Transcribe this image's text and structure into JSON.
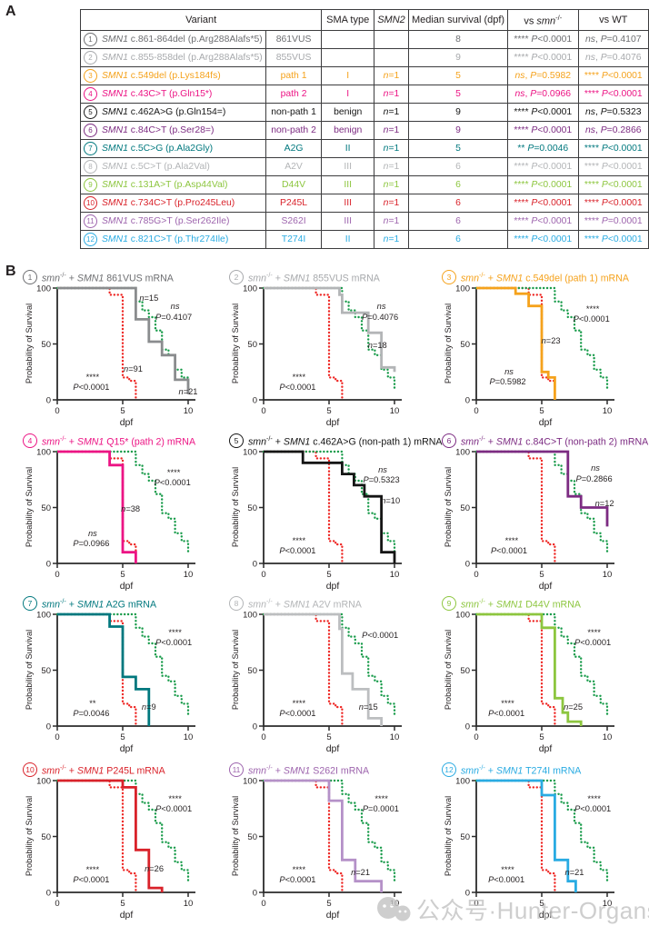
{
  "panel_a": {
    "label": "A"
  },
  "panel_b": {
    "label": "B"
  },
  "table": {
    "headers": {
      "variant": "Variant",
      "sma_type": "SMA type",
      "smn2": "SMN2",
      "median": "Median survival (dpf)",
      "vs_smn": "vs smn-/-",
      "vs_wt": "vs WT"
    },
    "rows": [
      {
        "num": "1",
        "color": "#6d6e71",
        "variant": "SMN1 c.861-864del (p.Arg288Alafs*5)",
        "short": "861VUS",
        "sma": "",
        "smn2": "",
        "median": "8",
        "vs_smn": "**** P<0.0001",
        "vs_wt": "ns, P=0.4107"
      },
      {
        "num": "2",
        "color": "#a7a9ac",
        "variant": "SMN1 c.855-858del (p.Arg288Alafs*5)",
        "short": "855VUS",
        "sma": "",
        "smn2": "",
        "median": "9",
        "vs_smn": "**** P<0.0001",
        "vs_wt": "ns, P=0.4076"
      },
      {
        "num": "3",
        "color": "#f5a21c",
        "variant": "SMN1 c.549del (p.Lys184fs)",
        "short": "path 1",
        "sma": "I",
        "smn2": "n=1",
        "median": "5",
        "vs_smn": "ns, P=0.5982",
        "vs_wt": "**** P<0.0001"
      },
      {
        "num": "4",
        "color": "#ec1484",
        "variant": "SMN1 c.43C>T (p.Gln15*)",
        "short": "path 2",
        "sma": "I",
        "smn2": "n=1",
        "median": "5",
        "vs_smn": "ns, P=0.0966",
        "vs_wt": "**** P<0.0001"
      },
      {
        "num": "5",
        "color": "#151515",
        "variant": "SMN1 c.462A>G (p.Gln154=)",
        "short": "non-path 1",
        "sma": "benign",
        "smn2": "n=1",
        "median": "9",
        "vs_smn": "**** P<0.0001",
        "vs_wt": "ns, P=0.5323"
      },
      {
        "num": "6",
        "color": "#7c2b82",
        "variant": "SMN1 c.84C>T (p.Ser28=)",
        "short": "non-path 2",
        "sma": "benign",
        "smn2": "n=1",
        "median": "9",
        "vs_smn": "**** P<0.0001",
        "vs_wt": "ns, P=0.2866"
      },
      {
        "num": "7",
        "color": "#00787e",
        "variant": "SMN1 c.5C>G (p.Ala2Gly)",
        "short": "A2G",
        "sma": "II",
        "smn2": "n=1",
        "median": "5",
        "vs_smn": "** P=0.0046",
        "vs_wt": "**** P<0.0001"
      },
      {
        "num": "8",
        "color": "#b3b5b7",
        "variant": "SMN1 c.5C>T (p.Ala2Val)",
        "short": "A2V",
        "sma": "III",
        "smn2": "n=1",
        "median": "6",
        "vs_smn": "**** P<0.0001",
        "vs_wt": "**** P<0.0001"
      },
      {
        "num": "9",
        "color": "#8dc63f",
        "variant": "SMN1 c.131A>T (p.Asp44Val)",
        "short": "D44V",
        "sma": "III",
        "smn2": "n=1",
        "median": "6",
        "vs_smn": "**** P<0.0001",
        "vs_wt": "**** P<0.0001"
      },
      {
        "num": "10",
        "color": "#d9222a",
        "variant": "SMN1 c.734C>T (p.Pro245Leu)",
        "short": "P245L",
        "sma": "III",
        "smn2": "n=1",
        "median": "6",
        "vs_smn": "**** P<0.0001",
        "vs_wt": "**** P<0.0001"
      },
      {
        "num": "11",
        "color": "#9d64ad",
        "variant": "SMN1 c.785G>T (p.Ser262Ile)",
        "short": "S262I",
        "sma": "III",
        "smn2": "n=1",
        "median": "6",
        "vs_smn": "**** P<0.0001",
        "vs_wt": "**** P=0.0001"
      },
      {
        "num": "12",
        "color": "#29abe2",
        "variant": "SMN1 c.821C>T (p.Thr274Ile)",
        "short": "T274I",
        "sma": "II",
        "smn2": "n=1",
        "median": "6",
        "vs_smn": "**** P<0.0001",
        "vs_wt": "**** P<0.0001"
      }
    ]
  },
  "chart_data": {
    "type": "kaplan-meier-step",
    "ylabel": "Probability of Survival",
    "xlabel": "dpf",
    "yticks": [
      "0",
      "50",
      "100"
    ],
    "xticks": [
      "0",
      "5",
      "10"
    ],
    "xlim": [
      0,
      10.5
    ],
    "ylim": [
      0,
      100
    ],
    "controls": {
      "smn_mutant": {
        "name": "smn-/-",
        "color": "#ee2724",
        "style": "dotted",
        "steps": [
          [
            0,
            100
          ],
          [
            4,
            94
          ],
          [
            5,
            20
          ],
          [
            5.5,
            17
          ],
          [
            6,
            0
          ]
        ]
      },
      "wt": {
        "name": "WT",
        "color": "#189b4a",
        "style": "dotted",
        "steps": [
          [
            0,
            100
          ],
          [
            6,
            88
          ],
          [
            6.5,
            80
          ],
          [
            7,
            74
          ],
          [
            7.5,
            62
          ],
          [
            8,
            45
          ],
          [
            8.5,
            40
          ],
          [
            9,
            27
          ],
          [
            9.5,
            20
          ],
          [
            10,
            8
          ]
        ]
      }
    },
    "plots": [
      {
        "num": "1",
        "color": "#6d6e71",
        "line_color": "#8a8c8e",
        "title": "smn-/- + SMN1 861VUS mRNA",
        "steps": [
          [
            0,
            100
          ],
          [
            6,
            72
          ],
          [
            7,
            52
          ],
          [
            8,
            40
          ],
          [
            9,
            18
          ],
          [
            10,
            5
          ]
        ],
        "annotations": [
          {
            "t": "n=15",
            "x": 7.0,
            "y": 91
          },
          {
            "t": "ns",
            "x": 9.0,
            "y": 84
          },
          {
            "t": "P=0.4107",
            "x": 8.9,
            "y": 74
          },
          {
            "t": "n=91",
            "x": 5.8,
            "y": 28
          },
          {
            "t": "****",
            "x": 2.7,
            "y": 20
          },
          {
            "t": "P<0.0001",
            "x": 2.6,
            "y": 11
          },
          {
            "t": "n=21",
            "x": 10.0,
            "y": 7
          }
        ]
      },
      {
        "num": "2",
        "color": "#a7a9ac",
        "line_color": "#b3b5b7",
        "title": "smn-/- + SMN1 855VUS mRNA",
        "steps": [
          [
            0,
            100
          ],
          [
            5.8,
            94
          ],
          [
            6,
            78
          ],
          [
            8,
            60
          ],
          [
            9,
            29
          ],
          [
            10,
            25
          ]
        ],
        "annotations": [
          {
            "t": "ns",
            "x": 9.0,
            "y": 84
          },
          {
            "t": "P=0.4076",
            "x": 8.9,
            "y": 74
          },
          {
            "t": "n=18",
            "x": 8.7,
            "y": 49
          },
          {
            "t": "****",
            "x": 2.7,
            "y": 20
          },
          {
            "t": "P<0.0001",
            "x": 2.6,
            "y": 11
          }
        ]
      },
      {
        "num": "3",
        "color": "#f5a21c",
        "title": "smn-/- + SMN1 c.549del (path 1) mRNA",
        "steps": [
          [
            0,
            100
          ],
          [
            3,
            95
          ],
          [
            4,
            84
          ],
          [
            5,
            25
          ],
          [
            5.5,
            20
          ],
          [
            6,
            0
          ]
        ],
        "annotations": [
          {
            "t": "****",
            "x": 8.9,
            "y": 81
          },
          {
            "t": "P<0.0001",
            "x": 8.8,
            "y": 72
          },
          {
            "t": "n=23",
            "x": 5.7,
            "y": 53
          },
          {
            "t": "ns",
            "x": 2.5,
            "y": 25
          },
          {
            "t": "P=0.5982",
            "x": 2.4,
            "y": 16
          }
        ]
      },
      {
        "num": "4",
        "color": "#ec1484",
        "title": "smn-/- + SMN1 Q15* (path 2) mRNA",
        "steps": [
          [
            0,
            100
          ],
          [
            4,
            88
          ],
          [
            5,
            10
          ],
          [
            6,
            0
          ]
        ],
        "annotations": [
          {
            "t": "****",
            "x": 8.9,
            "y": 81
          },
          {
            "t": "P<0.0001",
            "x": 8.8,
            "y": 72
          },
          {
            "t": "n=38",
            "x": 5.6,
            "y": 49
          },
          {
            "t": "ns",
            "x": 2.7,
            "y": 27
          },
          {
            "t": "P=0.0966",
            "x": 2.6,
            "y": 18
          }
        ]
      },
      {
        "num": "5",
        "color": "#151515",
        "title": "smn-/- + SMN1 c.462A>G (non-path 1) mRNA",
        "steps": [
          [
            0,
            100
          ],
          [
            3,
            90
          ],
          [
            6,
            80
          ],
          [
            6.9,
            70
          ],
          [
            7.7,
            60
          ],
          [
            9,
            10
          ],
          [
            10,
            0
          ]
        ],
        "annotations": [
          {
            "t": "ns",
            "x": 9.1,
            "y": 84
          },
          {
            "t": "P=0.5323",
            "x": 9.0,
            "y": 75
          },
          {
            "t": "n=10",
            "x": 9.7,
            "y": 56
          },
          {
            "t": "****",
            "x": 2.7,
            "y": 20
          },
          {
            "t": "P<0.0001",
            "x": 2.6,
            "y": 11
          }
        ]
      },
      {
        "num": "6",
        "color": "#7c2b82",
        "title": "smn-/- + SMN1 c.84C>T (non-path 2) mRNA",
        "steps": [
          [
            0,
            100
          ],
          [
            7,
            60
          ],
          [
            8,
            50
          ],
          [
            10,
            33
          ]
        ],
        "annotations": [
          {
            "t": "ns",
            "x": 9.1,
            "y": 85
          },
          {
            "t": "P=0.2866",
            "x": 9.0,
            "y": 76
          },
          {
            "t": "n=12",
            "x": 9.8,
            "y": 54
          },
          {
            "t": "****",
            "x": 2.7,
            "y": 20
          },
          {
            "t": "P<0.0001",
            "x": 2.5,
            "y": 11
          }
        ]
      },
      {
        "num": "7",
        "color": "#00787e",
        "title": "smn-/- + SMN1 A2G mRNA",
        "steps": [
          [
            0,
            100
          ],
          [
            4,
            89
          ],
          [
            5,
            44
          ],
          [
            6,
            33
          ],
          [
            7,
            0
          ]
        ],
        "annotations": [
          {
            "t": "****",
            "x": 9.0,
            "y": 84
          },
          {
            "t": "P<0.0001",
            "x": 8.9,
            "y": 75
          },
          {
            "t": "n=9",
            "x": 7.0,
            "y": 17
          },
          {
            "t": "**",
            "x": 2.7,
            "y": 20
          },
          {
            "t": "P=0.0046",
            "x": 2.6,
            "y": 11
          }
        ]
      },
      {
        "num": "8",
        "color": "#b3b5b7",
        "line_color": "#bcbec0",
        "title": "smn-/- + SMN1 A2V mRNA",
        "steps": [
          [
            0,
            100
          ],
          [
            5.8,
            87
          ],
          [
            6,
            47
          ],
          [
            6.8,
            33
          ],
          [
            8,
            7
          ],
          [
            9,
            0
          ]
        ],
        "annotations": [
          {
            "t": "P<0.0001",
            "x": 8.9,
            "y": 81
          },
          {
            "t": "n=15",
            "x": 8.0,
            "y": 17
          },
          {
            "t": "****",
            "x": 2.7,
            "y": 20
          },
          {
            "t": "P<0.0001",
            "x": 2.6,
            "y": 11
          }
        ]
      },
      {
        "num": "9",
        "color": "#8dc63f",
        "title": "smn-/- + SMN1 D44V mRNA",
        "steps": [
          [
            0,
            100
          ],
          [
            5,
            88
          ],
          [
            6,
            25
          ],
          [
            6.6,
            12
          ],
          [
            7,
            4
          ],
          [
            8,
            0
          ]
        ],
        "annotations": [
          {
            "t": "****",
            "x": 9.0,
            "y": 84
          },
          {
            "t": "P<0.0001",
            "x": 8.9,
            "y": 75
          },
          {
            "t": "n=25",
            "x": 7.4,
            "y": 17
          },
          {
            "t": "****",
            "x": 2.4,
            "y": 20
          },
          {
            "t": "P<0.0001",
            "x": 2.3,
            "y": 11
          }
        ]
      },
      {
        "num": "10",
        "color": "#d9222a",
        "title": "smn-/- + SMN1 P245L mRNA",
        "steps": [
          [
            0,
            100
          ],
          [
            5,
            94
          ],
          [
            6,
            38
          ],
          [
            7,
            4
          ],
          [
            8,
            0
          ]
        ],
        "annotations": [
          {
            "t": "****",
            "x": 9.0,
            "y": 84
          },
          {
            "t": "P<0.0001",
            "x": 8.9,
            "y": 75
          },
          {
            "t": "n=26",
            "x": 7.4,
            "y": 21
          },
          {
            "t": "****",
            "x": 2.7,
            "y": 20
          },
          {
            "t": "P<0.0001",
            "x": 2.6,
            "y": 11
          }
        ]
      },
      {
        "num": "11",
        "color": "#9d64ad",
        "line_color": "#b591c8",
        "title": "smn-/- + SMN1 S262I mRNA",
        "steps": [
          [
            0,
            100
          ],
          [
            5,
            82
          ],
          [
            6,
            29
          ],
          [
            7,
            10
          ],
          [
            9,
            0
          ]
        ],
        "annotations": [
          {
            "t": "****",
            "x": 9.0,
            "y": 84
          },
          {
            "t": "P=0.0001",
            "x": 8.95,
            "y": 75
          },
          {
            "t": "n=21",
            "x": 7.4,
            "y": 18
          },
          {
            "t": "****",
            "x": 2.7,
            "y": 20
          },
          {
            "t": "P<0.0001",
            "x": 2.6,
            "y": 11
          }
        ]
      },
      {
        "num": "12",
        "color": "#29abe2",
        "title": "smn-/- + SMN1 T274I mRNA",
        "steps": [
          [
            0,
            100
          ],
          [
            5,
            87
          ],
          [
            6,
            29
          ],
          [
            7,
            10
          ],
          [
            7.6,
            0
          ]
        ],
        "annotations": [
          {
            "t": "****",
            "x": 9.0,
            "y": 84
          },
          {
            "t": "P<0.0001",
            "x": 8.9,
            "y": 75
          },
          {
            "t": "n=21",
            "x": 7.5,
            "y": 18
          },
          {
            "t": "****",
            "x": 2.4,
            "y": 20
          },
          {
            "t": "P<0.0001",
            "x": 2.3,
            "y": 11
          }
        ]
      }
    ]
  },
  "watermark": {
    "text": "公众号·Hunter-Organs",
    "icon": "wechat-chat-bubbles-icon",
    "color": "#c3c3c3"
  }
}
